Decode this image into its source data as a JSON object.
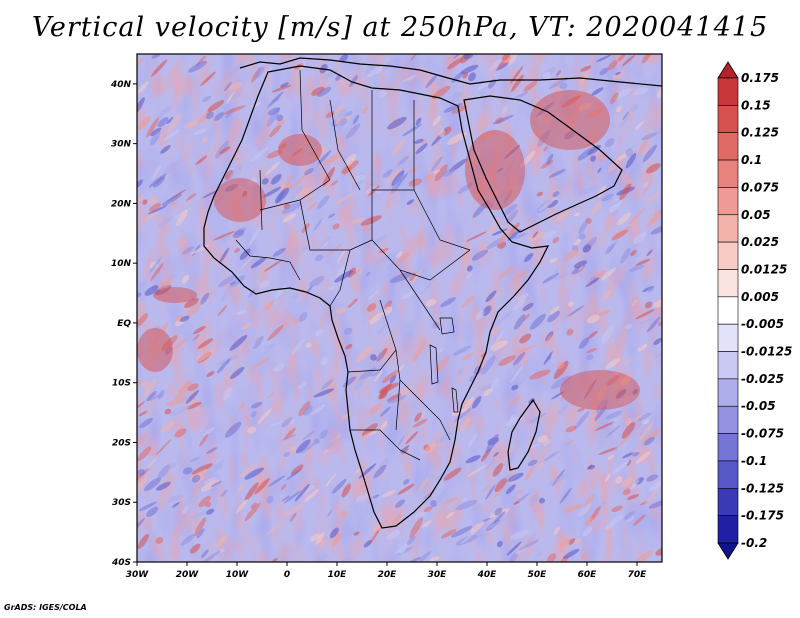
{
  "title": "Vertical velocity [m/s] at 250hPa, VT: 2020041415",
  "credit": "GrADS: IGES/COLA",
  "map": {
    "region": "Africa and Arabian Peninsula",
    "field_description": "noisy vertical velocity field; red = positive (ascent), blue = negative (descent)",
    "lon_labels": [
      "30W",
      "20W",
      "10W",
      "0",
      "10E",
      "20E",
      "30E",
      "40E",
      "50E",
      "60E",
      "70E"
    ],
    "lat_labels": [
      "40N",
      "30N",
      "20N",
      "10N",
      "EQ",
      "10S",
      "20S",
      "30S",
      "40S"
    ],
    "lon_values": [
      -30,
      -20,
      -10,
      0,
      10,
      20,
      30,
      40,
      50,
      60,
      70
    ],
    "lat_values": [
      40,
      30,
      20,
      10,
      0,
      -10,
      -20,
      -30,
      -40
    ],
    "lon_range": [
      -30,
      75
    ],
    "lat_range": [
      -40,
      45
    ]
  },
  "colorbar": {
    "labels": [
      "0.175",
      "0.15",
      "0.125",
      "0.1",
      "0.075",
      "0.05",
      "0.025",
      "0.0125",
      "0.005",
      "-0.005",
      "-0.0125",
      "-0.025",
      "-0.05",
      "-0.075",
      "-0.1",
      "-0.125",
      "-0.175",
      "-0.2"
    ],
    "colors": [
      "#b5202a",
      "#c8383b",
      "#d6514f",
      "#e06a66",
      "#e8827c",
      "#ef9a92",
      "#f4b3aa",
      "#f8ccc4",
      "#fbe4df",
      "#ffffff",
      "#e2e2fa",
      "#c8c8f2",
      "#adadea",
      "#9292e1",
      "#7575d6",
      "#5757c8",
      "#3a3ab8",
      "#2020a5",
      "#13138e"
    ]
  }
}
